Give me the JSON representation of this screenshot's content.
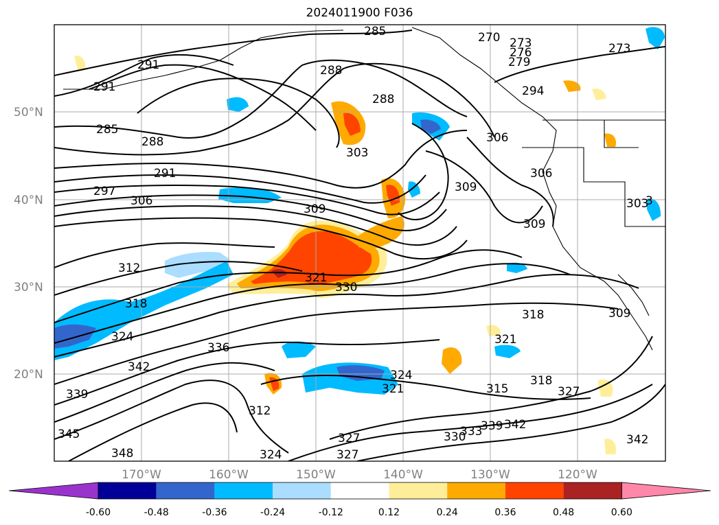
{
  "title": "2024011900 F036",
  "map": {
    "lat_labels": [
      "50°N",
      "40°N",
      "30°N",
      "20°N"
    ],
    "lon_labels": [
      "170°W",
      "160°W",
      "150°W",
      "140°W",
      "130°W",
      "120°W"
    ],
    "gridlines": true,
    "contour_labels": [
      {
        "text": "285",
        "pos": "top-center"
      },
      {
        "text": "270",
        "pos": "top"
      },
      {
        "text": "273",
        "pos": "top"
      },
      {
        "text": "276",
        "pos": "top"
      },
      {
        "text": "279",
        "pos": "top"
      },
      {
        "text": "273",
        "pos": "top-right"
      },
      {
        "text": "291",
        "pos": "upper-left"
      },
      {
        "text": "291",
        "pos": "upper-left"
      },
      {
        "text": "288",
        "pos": "upper-center"
      },
      {
        "text": "288",
        "pos": "upper-center"
      },
      {
        "text": "294",
        "pos": "upper-right"
      },
      {
        "text": "285",
        "pos": "left"
      },
      {
        "text": "288",
        "pos": "left"
      },
      {
        "text": "303",
        "pos": "center"
      },
      {
        "text": "306",
        "pos": "right"
      },
      {
        "text": "306",
        "pos": "right"
      },
      {
        "text": "291",
        "pos": "left"
      },
      {
        "text": "297",
        "pos": "left"
      },
      {
        "text": "306",
        "pos": "left"
      },
      {
        "text": "309",
        "pos": "center"
      },
      {
        "text": "309",
        "pos": "center-right"
      },
      {
        "text": "309",
        "pos": "right"
      },
      {
        "text": "303",
        "pos": "far-right"
      },
      {
        "text": "312",
        "pos": "left"
      },
      {
        "text": "321",
        "pos": "center"
      },
      {
        "text": "330",
        "pos": "center"
      },
      {
        "text": "318",
        "pos": "left"
      },
      {
        "text": "318",
        "pos": "right"
      },
      {
        "text": "324",
        "pos": "left"
      },
      {
        "text": "336",
        "pos": "left"
      },
      {
        "text": "342",
        "pos": "left"
      },
      {
        "text": "339",
        "pos": "lower-left"
      },
      {
        "text": "345",
        "pos": "lower-left"
      },
      {
        "text": "348",
        "pos": "lower-left"
      },
      {
        "text": "312",
        "pos": "lower-center"
      },
      {
        "text": "321",
        "pos": "right"
      },
      {
        "text": "324",
        "pos": "center-right"
      },
      {
        "text": "321",
        "pos": "center-right"
      },
      {
        "text": "315",
        "pos": "lower-right"
      },
      {
        "text": "318",
        "pos": "lower-right"
      },
      {
        "text": "327",
        "pos": "lower-right"
      },
      {
        "text": "327",
        "pos": "bottom"
      },
      {
        "text": "327",
        "pos": "bottom"
      },
      {
        "text": "324",
        "pos": "bottom"
      },
      {
        "text": "330",
        "pos": "bottom"
      },
      {
        "text": "333",
        "pos": "bottom"
      },
      {
        "text": "339",
        "pos": "bottom"
      },
      {
        "text": "342",
        "pos": "bottom"
      },
      {
        "text": "342",
        "pos": "bottom-right"
      },
      {
        "text": "309",
        "pos": "right"
      },
      {
        "text": "3",
        "pos": "right"
      }
    ]
  },
  "colorbar": {
    "labels": [
      "-0.60",
      "-0.48",
      "-0.36",
      "-0.24",
      "-0.12",
      "0.12",
      "0.24",
      "0.36",
      "0.48",
      "0.60"
    ],
    "colors": [
      "#9933cc",
      "#000099",
      "#3366cc",
      "#00bbff",
      "#aaddff",
      "#ffffff",
      "#ffee99",
      "#ffaa00",
      "#ff4400",
      "#aa2222",
      "#ff88aa"
    ]
  }
}
